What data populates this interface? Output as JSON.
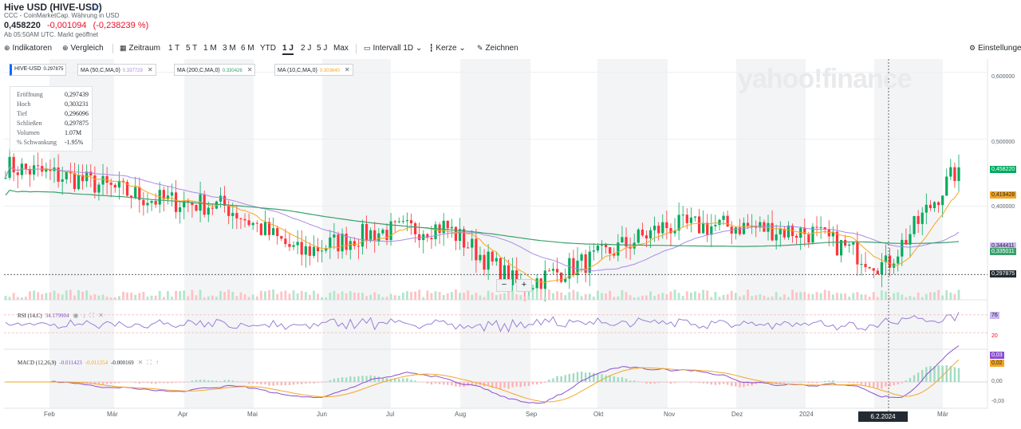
{
  "header": {
    "title": "Hive USD (HIVE-USD)",
    "subtitle": "CCC - CoinMarketCap. Währung in USD",
    "price": "0,458220",
    "change": "-0,001094",
    "change_pct": "(-0,238239 %)",
    "time_note": "Ab 05:50AM UTC. Markt geöffnet"
  },
  "toolbar": {
    "indikatoren": "Indikatoren",
    "vergleich": "Vergleich",
    "zeitraum": "Zeitraum",
    "ranges": [
      "1 T",
      "5 T",
      "1 M",
      "3 M",
      "6 M",
      "YTD",
      "1 J",
      "2 J",
      "5 J",
      "Max"
    ],
    "active_range": "1 J",
    "intervall": "Intervall",
    "intervall_value": "1D",
    "kerze": "Kerze",
    "zeichnen": "Zeichnen",
    "einstellungen": "Einstellungen"
  },
  "legend_chips": {
    "symbol": "HIVE-USD",
    "symbol_val": "0.297875",
    "ma50": "MA (50,C,MA,0)",
    "ma50_val": "0.337729",
    "ma200": "MA (200,C,MA,0)",
    "ma200_val": "0.330426",
    "ma10": "MA (10,C,MA,0)",
    "ma10_val": "0.303640"
  },
  "ohlc_box": {
    "rows": [
      {
        "label": "Eröffnung",
        "value": "0,297439"
      },
      {
        "label": "Hoch",
        "value": "0,303231"
      },
      {
        "label": "Tief",
        "value": "0,296096"
      },
      {
        "label": "Schließen",
        "value": "0,297875"
      },
      {
        "label": "Volumen",
        "value": "1.07M"
      },
      {
        "label": "% Schwankung",
        "value": "-1.95%"
      }
    ]
  },
  "watermark": "yahoo!finance",
  "rsi": {
    "label": "RSI (14,C)",
    "value": "34.179904",
    "tag": "76",
    "level_30": "20"
  },
  "macd": {
    "label": "MACD (12,26,9)",
    "v1": "-0.011423",
    "v2": "-0.011254",
    "v3": "-0.000169",
    "tag1": "0,03",
    "tag2": "0,02",
    "zero": "0,00",
    "neg": "-0,03"
  },
  "crosshair_date": "6.2.2024",
  "months": [
    "Feb",
    "Mär",
    "Apr",
    "Mai",
    "Jun",
    "Jul",
    "Aug",
    "Sep",
    "Okt",
    "Nov",
    "Dez",
    "2024",
    "Feb",
    "Mär"
  ],
  "colors": {
    "up": "#00ab5e",
    "down": "#ff333a",
    "ma50": "#a98ae6",
    "ma200": "#3aa16d",
    "ma10": "#f5a623",
    "rsi": "#9b7fd8",
    "macd": "#8b4fd0",
    "signal": "#f5a623"
  },
  "chart_data": {
    "type": "candlestick",
    "title": "Hive USD (HIVE-USD)",
    "ylim": [
      0.26,
      0.62
    ],
    "y_ticks": [
      "0,600000",
      "0,500000",
      "0,400000"
    ],
    "price_tags": {
      "last": "0,458220",
      "ma10": "0,419428",
      "ma50": "0,344411",
      "ma200": "0,335011",
      "cursor": "0,297875"
    },
    "x_months": [
      "Feb",
      "Mär",
      "Apr",
      "Mai",
      "Jun",
      "Jul",
      "Aug",
      "Sep",
      "Okt",
      "Nov",
      "Dez",
      "2024",
      "Feb",
      "Mär"
    ],
    "close_series": [
      {
        "month": "Feb",
        "value": 0.46
      },
      {
        "month": "Mär",
        "value": 0.44
      },
      {
        "month": "Apr",
        "value": 0.41
      },
      {
        "month": "Mai",
        "value": 0.4
      },
      {
        "month": "Jun",
        "value": 0.33
      },
      {
        "month": "Jul",
        "value": 0.36
      },
      {
        "month": "Aug",
        "value": 0.37
      },
      {
        "month": "Sep",
        "value": 0.28
      },
      {
        "month": "Okt",
        "value": 0.32
      },
      {
        "month": "Nov",
        "value": 0.37
      },
      {
        "month": "Dez",
        "value": 0.37
      },
      {
        "month": "2024",
        "value": 0.36
      },
      {
        "month": "Feb",
        "value": 0.31
      },
      {
        "month": "Mär",
        "value": 0.458
      }
    ]
  }
}
